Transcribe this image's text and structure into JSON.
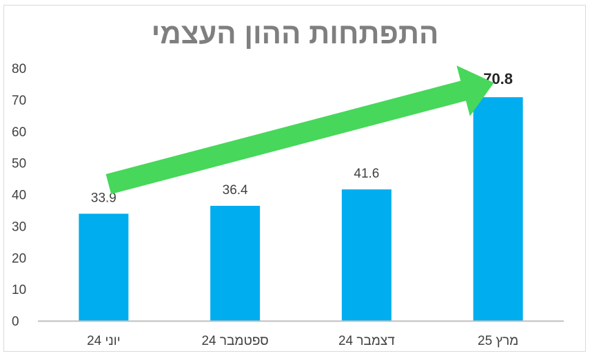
{
  "chart_data": {
    "type": "bar",
    "title": "התפתחות ההון העצמי",
    "categories": [
      "יוני 24",
      "ספטמבר 24",
      "דצמבר 24",
      "מרץ 25"
    ],
    "values": [
      33.9,
      36.4,
      41.6,
      70.8
    ],
    "value_labels": [
      "33.9",
      "36.4",
      "41.6",
      "70.8"
    ],
    "y_ticks": [
      "0",
      "10",
      "20",
      "30",
      "40",
      "50",
      "60",
      "70",
      "80"
    ],
    "ylim": [
      0,
      80
    ],
    "xlabel": "",
    "ylabel": "",
    "grid": false,
    "legend": "none",
    "colors": {
      "bar": "#00ADEF",
      "arrow": "#47D75B",
      "title": "#7F7F7F",
      "text": "#404040",
      "axis": "#BFBFBF",
      "border": "#D9D9D9"
    },
    "annotations": [
      {
        "type": "arrow",
        "from_category": 0,
        "to_category": 3,
        "direction": "up"
      }
    ]
  }
}
